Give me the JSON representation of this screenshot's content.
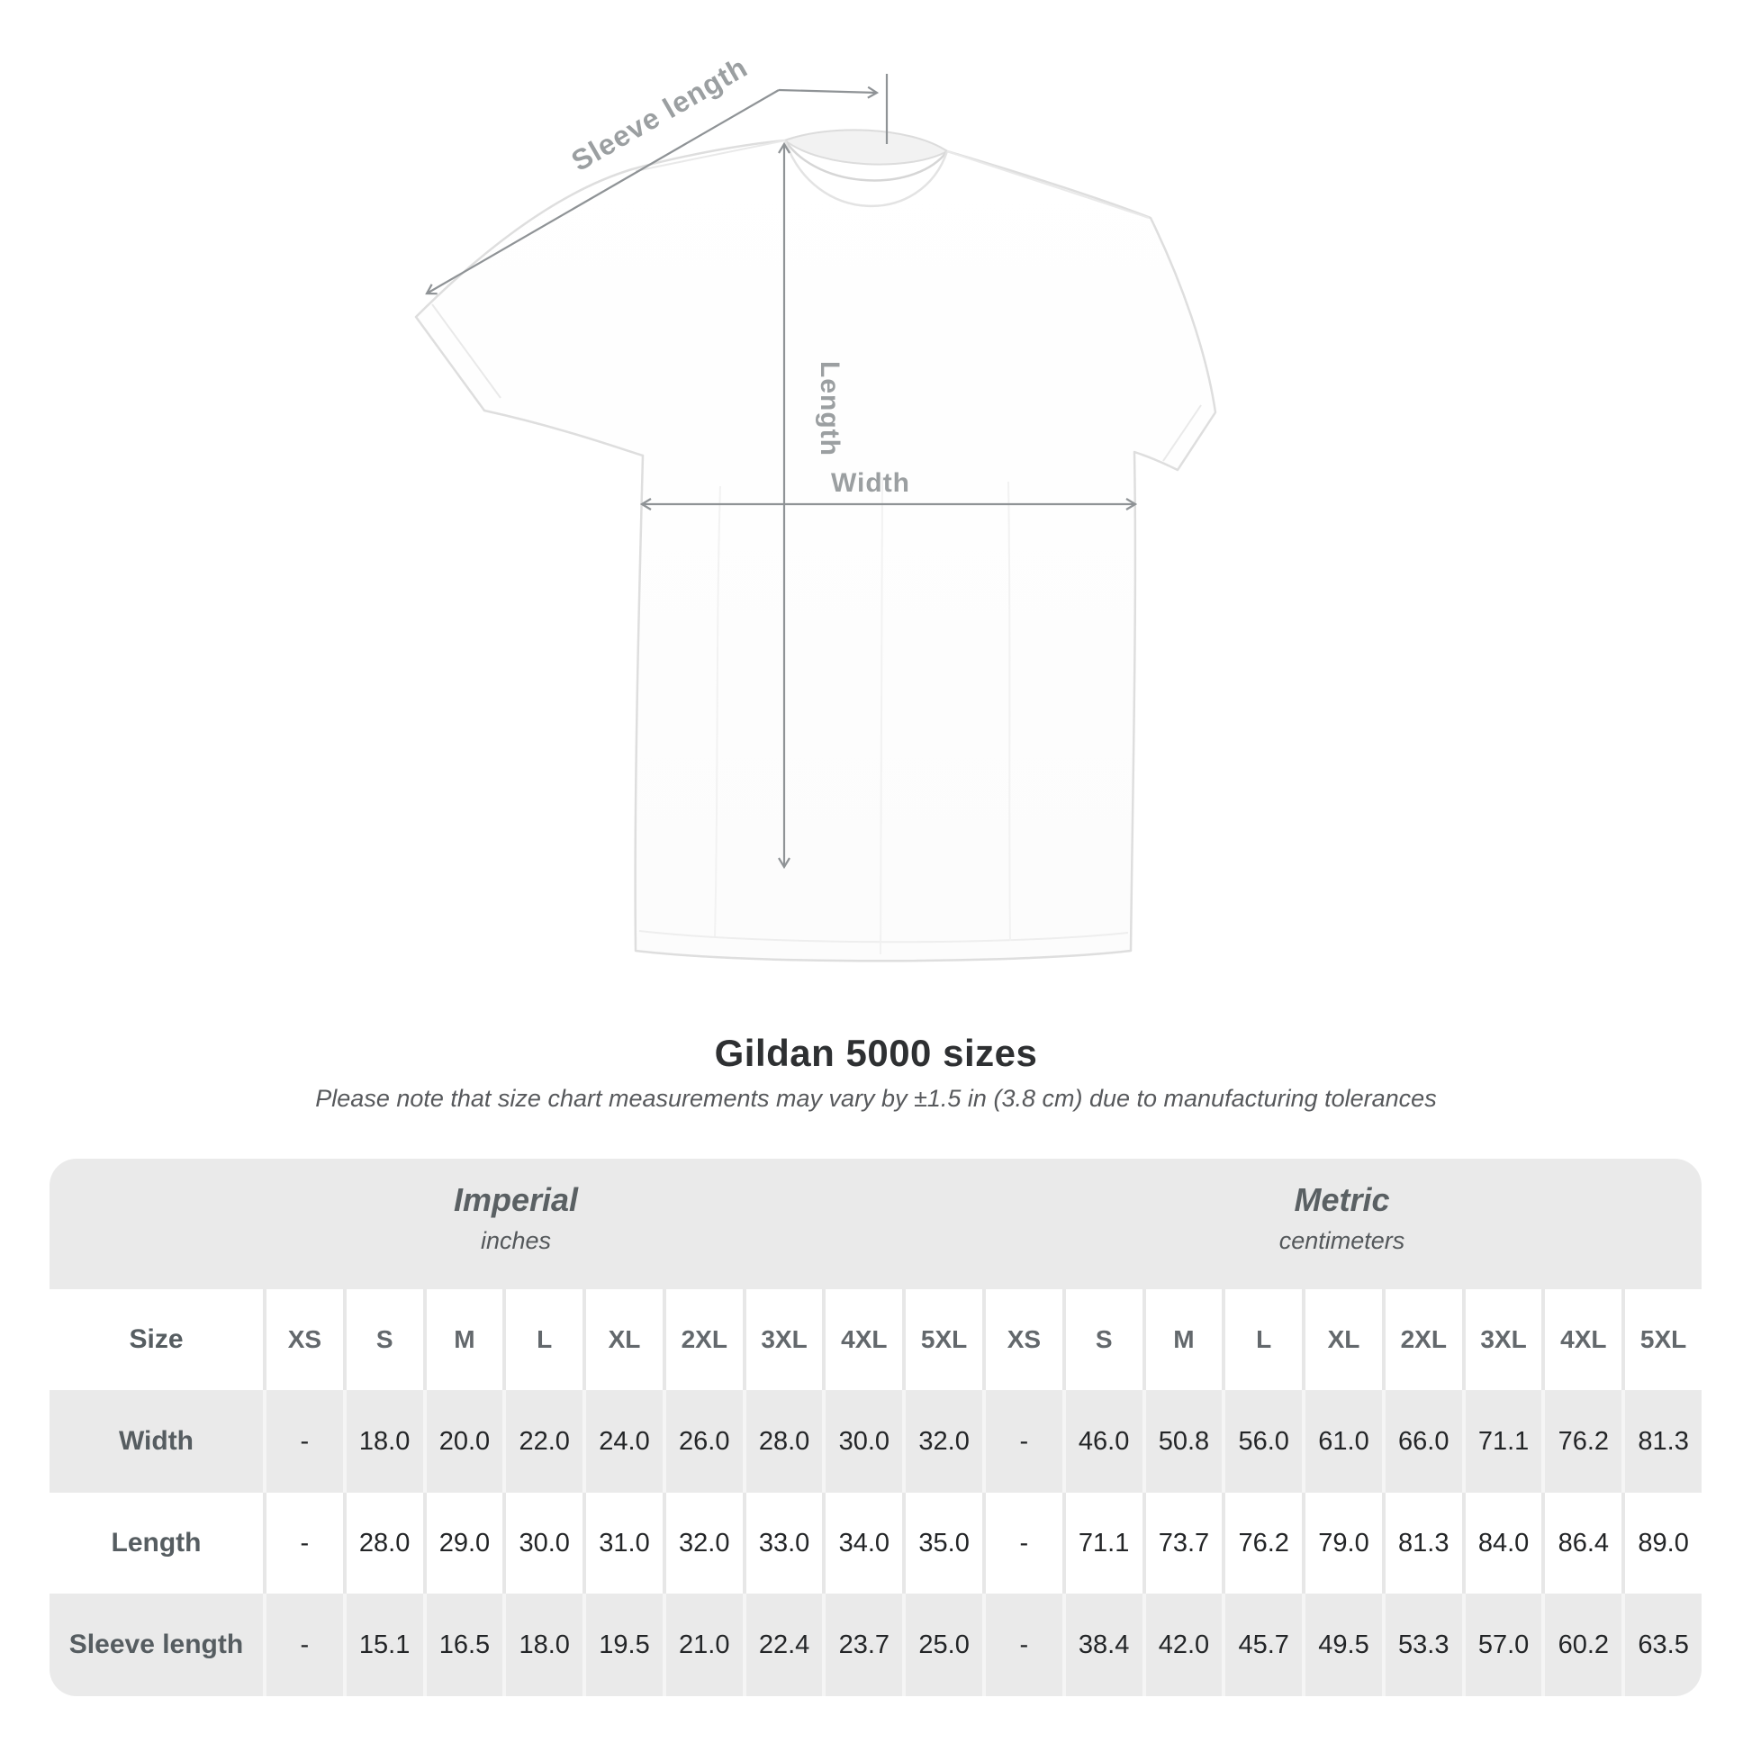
{
  "diagram": {
    "sleeve_length_label": "Sleeve length",
    "length_label": "Length",
    "width_label": "Width"
  },
  "header": {
    "title": "Gildan 5000 sizes",
    "note": "Please note that size chart measurements may vary by ±1.5 in (3.8 cm) due to manufacturing tolerances"
  },
  "chart_data": {
    "type": "table",
    "title": "Gildan 5000 sizes",
    "corner_header": "Size",
    "unit_groups": [
      {
        "label": "Imperial",
        "sublabel": "inches"
      },
      {
        "label": "Metric",
        "sublabel": "centimeters"
      }
    ],
    "size_columns": [
      "XS",
      "S",
      "M",
      "L",
      "XL",
      "2XL",
      "3XL",
      "4XL",
      "5XL"
    ],
    "rows": [
      {
        "label": "Width",
        "imperial": [
          "-",
          "18.0",
          "20.0",
          "22.0",
          "24.0",
          "26.0",
          "28.0",
          "30.0",
          "32.0"
        ],
        "metric": [
          "-",
          "46.0",
          "50.8",
          "56.0",
          "61.0",
          "66.0",
          "71.1",
          "76.2",
          "81.3"
        ]
      },
      {
        "label": "Length",
        "imperial": [
          "-",
          "28.0",
          "29.0",
          "30.0",
          "31.0",
          "32.0",
          "33.0",
          "34.0",
          "35.0"
        ],
        "metric": [
          "-",
          "71.1",
          "73.7",
          "76.2",
          "79.0",
          "81.3",
          "84.0",
          "86.4",
          "89.0"
        ]
      },
      {
        "label": "Sleeve length",
        "imperial": [
          "-",
          "15.1",
          "16.5",
          "18.0",
          "19.5",
          "21.0",
          "22.4",
          "23.7",
          "25.0"
        ],
        "metric": [
          "-",
          "38.4",
          "42.0",
          "45.7",
          "49.5",
          "53.3",
          "57.0",
          "60.2",
          "63.5"
        ]
      }
    ]
  },
  "colors": {
    "table_band_gray": "#eaeaea",
    "annotation_gray": "#8f9396",
    "label_gray": "#9b9fa1",
    "value_text": "#232527",
    "title_text": "#2e3032"
  }
}
